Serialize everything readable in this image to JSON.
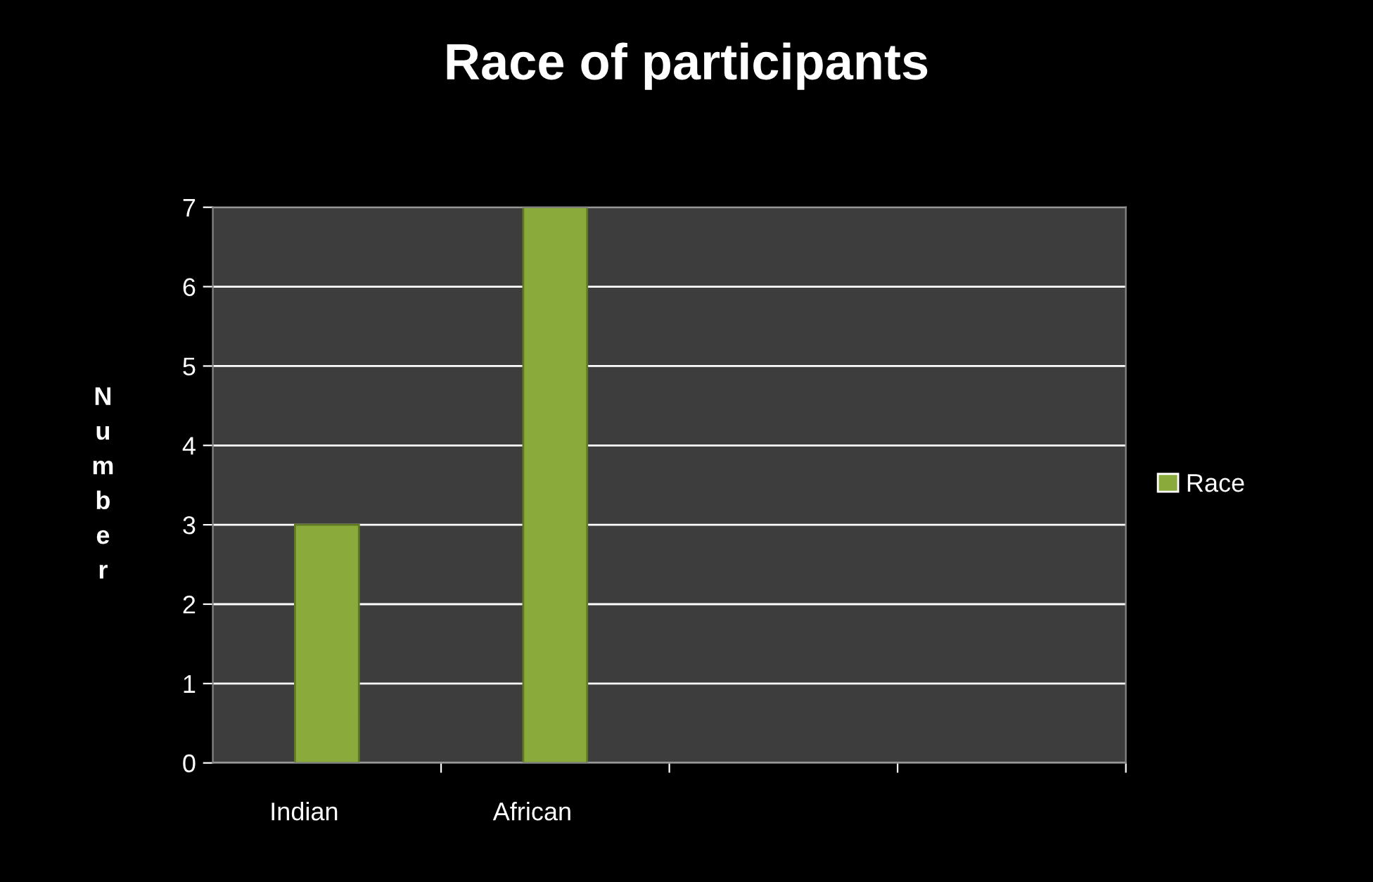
{
  "chart_data": {
    "type": "bar",
    "title": "Race of participants",
    "ylabel": "Number",
    "categories": [
      "Indian",
      "African",
      null,
      null
    ],
    "series": [
      {
        "name": "Race",
        "color": "#8aab3c",
        "values": [
          3,
          7,
          null,
          null
        ]
      }
    ],
    "ylim": [
      0,
      7
    ],
    "yticks": [
      0,
      1,
      2,
      3,
      4,
      5,
      6,
      7
    ],
    "grid": "y",
    "legend": "right"
  }
}
